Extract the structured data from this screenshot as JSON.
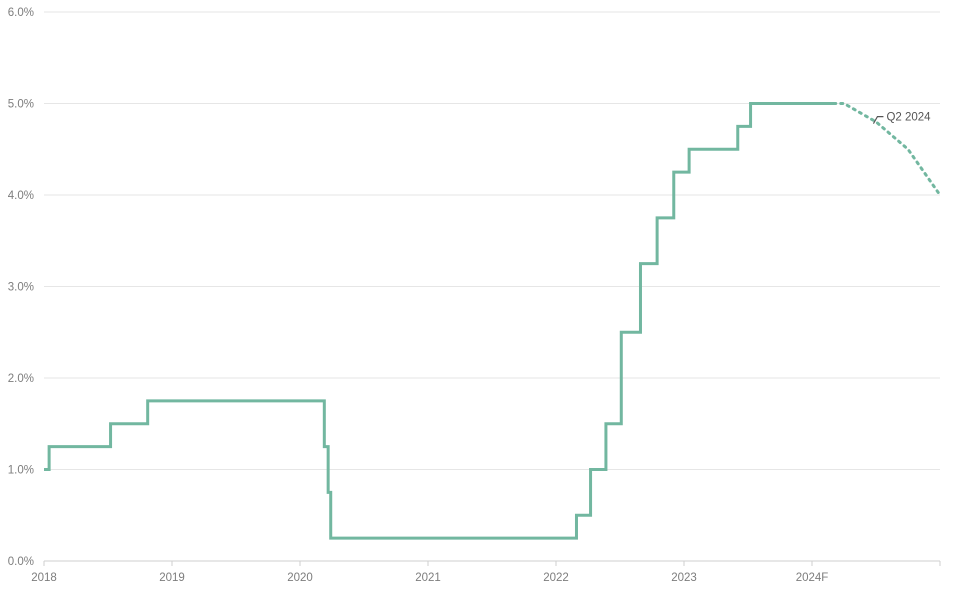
{
  "colors": {
    "series": "#72b7a0",
    "grid": "#e6e6e6",
    "axis": "#cfcfcf",
    "tick_text": "#7d7d7d",
    "annotation": "#555555"
  },
  "chart_data": {
    "type": "line",
    "title": "",
    "xlabel": "",
    "ylabel": "",
    "x_unit": "year",
    "xlim": [
      2018,
      2025
    ],
    "ylim": [
      0,
      6
    ],
    "grid": true,
    "legend": "none",
    "y_ticks": [
      {
        "value": 0,
        "label": "0.0%"
      },
      {
        "value": 1,
        "label": "1.0%"
      },
      {
        "value": 2,
        "label": "2.0%"
      },
      {
        "value": 3,
        "label": "3.0%"
      },
      {
        "value": 4,
        "label": "4.0%"
      },
      {
        "value": 5,
        "label": "5.0%"
      },
      {
        "value": 6,
        "label": "6.0%"
      }
    ],
    "x_ticks": [
      {
        "value": 2018,
        "label": "2018"
      },
      {
        "value": 2019,
        "label": "2019"
      },
      {
        "value": 2020,
        "label": "2020"
      },
      {
        "value": 2021,
        "label": "2021"
      },
      {
        "value": 2022,
        "label": "2022"
      },
      {
        "value": 2023,
        "label": "2023"
      },
      {
        "value": 2024,
        "label": "2024F"
      }
    ],
    "series": [
      {
        "style": "step-solid",
        "points": [
          [
            2018.0,
            1.0
          ],
          [
            2018.04,
            1.0
          ],
          [
            2018.04,
            1.25
          ],
          [
            2018.52,
            1.25
          ],
          [
            2018.52,
            1.5
          ],
          [
            2018.81,
            1.5
          ],
          [
            2018.81,
            1.75
          ],
          [
            2020.19,
            1.75
          ],
          [
            2020.19,
            1.25
          ],
          [
            2020.22,
            1.25
          ],
          [
            2020.22,
            0.75
          ],
          [
            2020.24,
            0.75
          ],
          [
            2020.24,
            0.25
          ],
          [
            2022.16,
            0.25
          ],
          [
            2022.16,
            0.5
          ],
          [
            2022.27,
            0.5
          ],
          [
            2022.27,
            1.0
          ],
          [
            2022.39,
            1.0
          ],
          [
            2022.39,
            1.5
          ],
          [
            2022.51,
            1.5
          ],
          [
            2022.51,
            2.5
          ],
          [
            2022.66,
            2.5
          ],
          [
            2022.66,
            3.25
          ],
          [
            2022.79,
            3.25
          ],
          [
            2022.79,
            3.75
          ],
          [
            2022.92,
            3.75
          ],
          [
            2022.92,
            4.25
          ],
          [
            2023.04,
            4.25
          ],
          [
            2023.04,
            4.5
          ],
          [
            2023.42,
            4.5
          ],
          [
            2023.42,
            4.75
          ],
          [
            2023.52,
            4.75
          ],
          [
            2023.52,
            5.0
          ],
          [
            2024.17,
            5.0
          ]
        ]
      },
      {
        "style": "dotted",
        "points": [
          [
            2024.17,
            5.0
          ],
          [
            2024.25,
            5.0
          ],
          [
            2024.5,
            4.8
          ],
          [
            2024.75,
            4.5
          ],
          [
            2025.0,
            4.0
          ]
        ]
      }
    ],
    "annotations": [
      {
        "label": "Q2 2024",
        "x": 2024.48,
        "y": 4.78
      }
    ]
  }
}
